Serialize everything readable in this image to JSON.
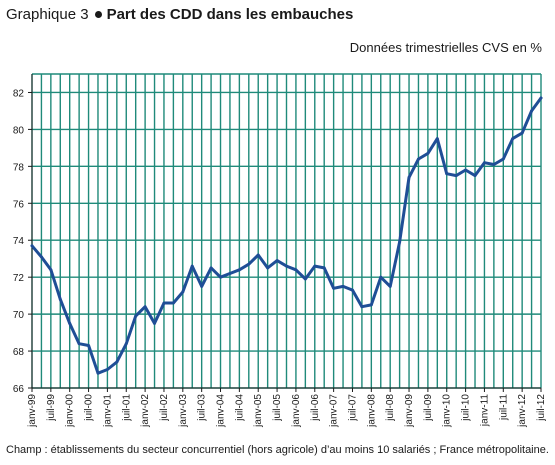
{
  "header": {
    "prefix": "Graphique 3",
    "title": "Part des CDD dans les embauches",
    "subtitle": "Données trimestrielles CVS en %"
  },
  "footnote": "Champ : établissements du secteur concurrentiel (hors agricole) d’au moins 10 salariés ; France métropolitaine.",
  "colors": {
    "line": "#1f4e96",
    "grid": "#1f8a7a",
    "axis": "#1a1a1a"
  },
  "chart_data": {
    "type": "line",
    "title": "Part des CDD dans les embauches",
    "ylabel": "",
    "xlabel": "",
    "ylim": [
      66,
      83
    ],
    "yticks": [
      66,
      68,
      70,
      72,
      74,
      76,
      78,
      80,
      82
    ],
    "grid": true,
    "tick_labels": [
      "janv-99",
      "juil-99",
      "janv-00",
      "juil-00",
      "janv-01",
      "juil-01",
      "janv-02",
      "juil-02",
      "janv-03",
      "juil-03",
      "janv-04",
      "juil-04",
      "janv-05",
      "juil-05",
      "janv-06",
      "juil-06",
      "janv-07",
      "juil-07",
      "janv-08",
      "juil-08",
      "janv-09",
      "juil-09",
      "janv-10",
      "juil-10",
      "janv-11",
      "juil-11",
      "janv-12",
      "juil-12"
    ],
    "x": [
      "1999-Q1",
      "1999-Q2",
      "1999-Q3",
      "1999-Q4",
      "2000-Q1",
      "2000-Q2",
      "2000-Q3",
      "2000-Q4",
      "2001-Q1",
      "2001-Q2",
      "2001-Q3",
      "2001-Q4",
      "2002-Q1",
      "2002-Q2",
      "2002-Q3",
      "2002-Q4",
      "2003-Q1",
      "2003-Q2",
      "2003-Q3",
      "2003-Q4",
      "2004-Q1",
      "2004-Q2",
      "2004-Q3",
      "2004-Q4",
      "2005-Q1",
      "2005-Q2",
      "2005-Q3",
      "2005-Q4",
      "2006-Q1",
      "2006-Q2",
      "2006-Q3",
      "2006-Q4",
      "2007-Q1",
      "2007-Q2",
      "2007-Q3",
      "2007-Q4",
      "2008-Q1",
      "2008-Q2",
      "2008-Q3",
      "2008-Q4",
      "2009-Q1",
      "2009-Q2",
      "2009-Q3",
      "2009-Q4",
      "2010-Q1",
      "2010-Q2",
      "2010-Q3",
      "2010-Q4",
      "2011-Q1",
      "2011-Q2",
      "2011-Q3",
      "2011-Q4",
      "2012-Q1",
      "2012-Q2",
      "2012-Q3"
    ],
    "series": [
      {
        "values": [
          73.7,
          73.1,
          72.4,
          70.8,
          69.5,
          68.4,
          68.3,
          66.8,
          67.0,
          67.4,
          68.4,
          69.9,
          70.4,
          69.5,
          70.6,
          70.6,
          71.2,
          72.6,
          71.5,
          72.5,
          72.0,
          72.2,
          72.4,
          72.7,
          73.2,
          72.5,
          72.9,
          72.6,
          72.4,
          71.9,
          72.6,
          72.5,
          71.4,
          71.5,
          71.3,
          70.4,
          70.5,
          72.0,
          71.5,
          73.9,
          77.4,
          78.4,
          78.7,
          79.5,
          77.6,
          77.5,
          77.8,
          77.5,
          78.2,
          78.1,
          78.4,
          79.5,
          79.8,
          81.0,
          81.7
        ]
      }
    ]
  }
}
